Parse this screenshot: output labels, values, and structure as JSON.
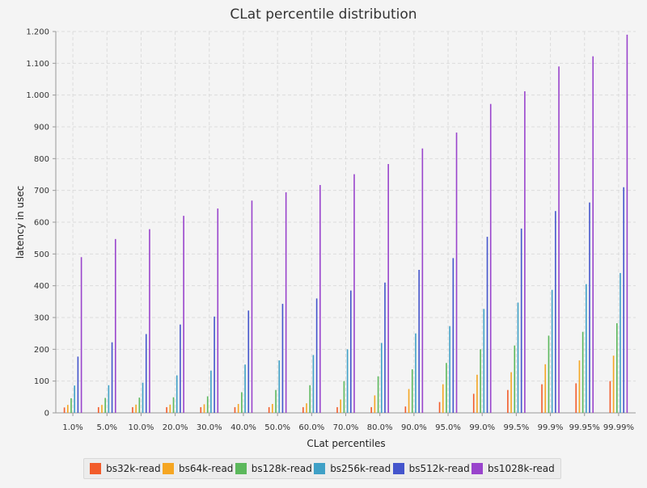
{
  "chart_data": {
    "type": "bar",
    "title": "CLat percentile distribution",
    "xlabel": "CLat percentiles",
    "ylabel": "latency in usec",
    "ylim": [
      0,
      1200
    ],
    "yticks": [
      0,
      100,
      200,
      300,
      400,
      500,
      600,
      700,
      800,
      900,
      1000,
      1100,
      1200
    ],
    "ytick_labels": [
      "0",
      "100",
      "200",
      "300",
      "400",
      "500",
      "600",
      "700",
      "800",
      "900",
      "1.000",
      "1.100",
      "1.200"
    ],
    "grid": true,
    "legend_position": "bottom",
    "categories": [
      "1.0%",
      "5.0%",
      "10.0%",
      "20.0%",
      "30.0%",
      "40.0%",
      "50.0%",
      "60.0%",
      "70.0%",
      "80.0%",
      "90.0%",
      "95.0%",
      "99.0%",
      "99.5%",
      "99.9%",
      "99.95%",
      "99.99%"
    ],
    "series": [
      {
        "name": "bs32k-read",
        "color": "#f25c2b",
        "values": [
          17,
          18,
          18,
          18,
          18,
          18,
          18,
          18,
          18,
          18,
          20,
          34,
          60,
          72,
          90,
          93,
          100
        ]
      },
      {
        "name": "bs64k-read",
        "color": "#f5a623",
        "values": [
          25,
          25,
          26,
          26,
          27,
          28,
          28,
          30,
          42,
          55,
          75,
          90,
          120,
          128,
          153,
          165,
          180
        ]
      },
      {
        "name": "bs128k-read",
        "color": "#5cb85c",
        "values": [
          46,
          47,
          48,
          49,
          52,
          65,
          72,
          87,
          100,
          115,
          137,
          157,
          200,
          212,
          243,
          255,
          282
        ]
      },
      {
        "name": "bs256k-read",
        "color": "#3fa0c6",
        "values": [
          86,
          87,
          95,
          118,
          133,
          152,
          165,
          182,
          200,
          220,
          250,
          273,
          327,
          347,
          387,
          405,
          440
        ]
      },
      {
        "name": "bs512k-read",
        "color": "#4455cc",
        "values": [
          177,
          222,
          248,
          278,
          303,
          322,
          343,
          360,
          385,
          410,
          450,
          487,
          554,
          580,
          635,
          662,
          710
        ]
      },
      {
        "name": "bs1028k-read",
        "color": "#9944cc",
        "values": [
          490,
          547,
          578,
          620,
          643,
          668,
          694,
          717,
          751,
          783,
          832,
          882,
          972,
          1012,
          1090,
          1122,
          1190
        ]
      }
    ]
  }
}
